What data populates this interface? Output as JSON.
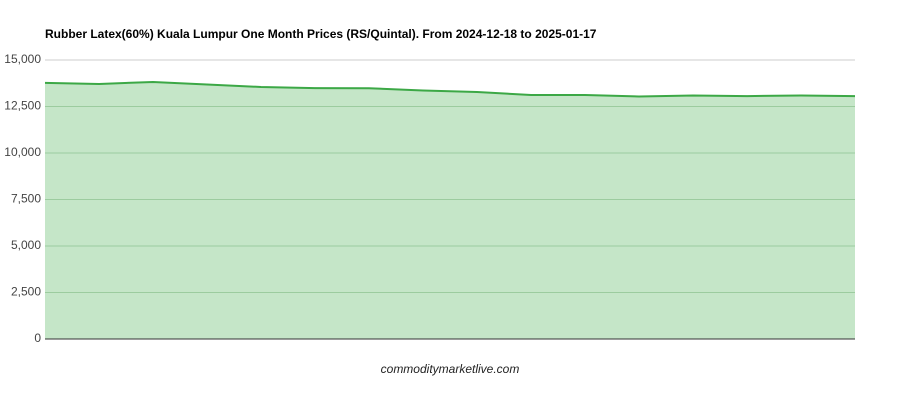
{
  "chart_data": {
    "type": "area",
    "title": "Rubber Latex(60%) Kuala Lumpur One Month Prices (RS/Quintal). From 2024-12-18 to 2025-01-17",
    "source": "commoditymarketlive.com",
    "categories": [
      null,
      null,
      null,
      null,
      null,
      null,
      null,
      null,
      null,
      null,
      null,
      null,
      null,
      null,
      null,
      null
    ],
    "values": [
      13770,
      13710,
      13820,
      13680,
      13550,
      13490,
      13480,
      13360,
      13280,
      13120,
      13120,
      13040,
      13090,
      13060,
      13090,
      13060
    ],
    "color": "#3ca846",
    "fill": "#c5e6c8",
    "ylim": [
      0,
      15000
    ],
    "yticks": [
      0,
      {
        "value": 2500,
        "label": "2,500"
      },
      {
        "value": 5000,
        "label": "5,000"
      },
      {
        "value": 7500,
        "label": "7,500"
      },
      {
        "value": 10000,
        "label": "10,000"
      },
      {
        "value": 12500,
        "label": "12,500"
      },
      {
        "value": 15000,
        "label": "15,000"
      }
    ],
    "grid": true
  }
}
